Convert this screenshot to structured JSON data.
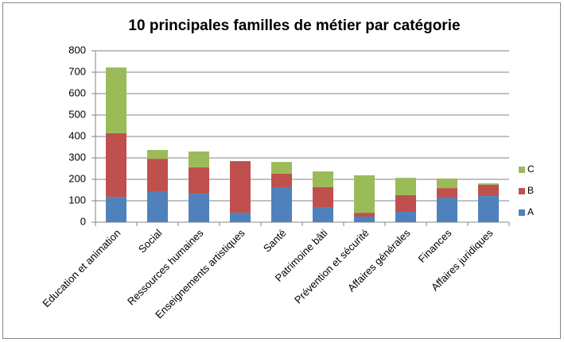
{
  "chart_data": {
    "type": "stacked_bar",
    "title": "10 principales familles de métier par catégorie",
    "categories": [
      "Education et animation",
      "Social",
      "Ressources humaines",
      "Enseignements artistiques",
      "Santé",
      "Patrimoine bâti",
      "Prévention et sécurité",
      "Affaires générales",
      "Finances",
      "Affaires juridiques"
    ],
    "series": [
      {
        "name": "A",
        "color": "#4f81bd",
        "values": [
          118,
          141,
          133,
          44,
          163,
          67,
          26,
          48,
          115,
          122
        ]
      },
      {
        "name": "B",
        "color": "#c0504d",
        "values": [
          297,
          155,
          123,
          241,
          63,
          96,
          18,
          78,
          44,
          52
        ]
      },
      {
        "name": "C",
        "color": "#9bbb59",
        "values": [
          307,
          41,
          74,
          0,
          55,
          74,
          175,
          81,
          45,
          7
        ]
      }
    ],
    "ylim": [
      0,
      800
    ],
    "yticks": [
      0,
      100,
      200,
      300,
      400,
      500,
      600,
      700,
      800
    ],
    "grid": true,
    "legend": "right"
  }
}
